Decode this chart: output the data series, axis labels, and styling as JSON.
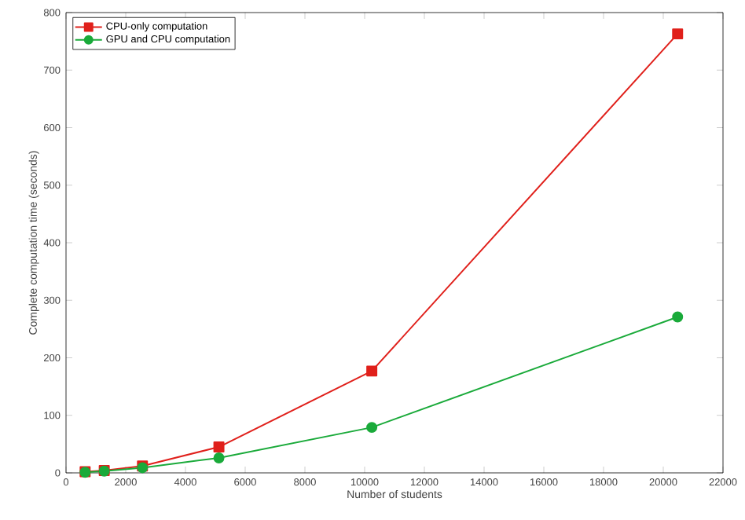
{
  "chart_data": {
    "type": "line",
    "xlabel": "Number of students",
    "ylabel": "Complete computation time (seconds)",
    "x": [
      640,
      1280,
      2560,
      5120,
      10240,
      20480
    ],
    "series": [
      {
        "name": "CPU-only computation",
        "color": "#e0201b",
        "marker": "square",
        "values": [
          2,
          4,
          12,
          45,
          177,
          763
        ]
      },
      {
        "name": "GPU and CPU computation",
        "color": "#1aaa3a",
        "marker": "circle",
        "values": [
          1,
          3,
          9,
          26,
          79,
          271
        ]
      }
    ],
    "xlim": [
      0,
      22000
    ],
    "ylim": [
      0,
      800
    ],
    "xticks": [
      0,
      2000,
      4000,
      6000,
      8000,
      10000,
      12000,
      14000,
      16000,
      18000,
      20000,
      22000
    ],
    "yticks": [
      0,
      100,
      200,
      300,
      400,
      500,
      600,
      700,
      800
    ],
    "grid": false,
    "legend": "top left",
    "line_style": "solid"
  }
}
